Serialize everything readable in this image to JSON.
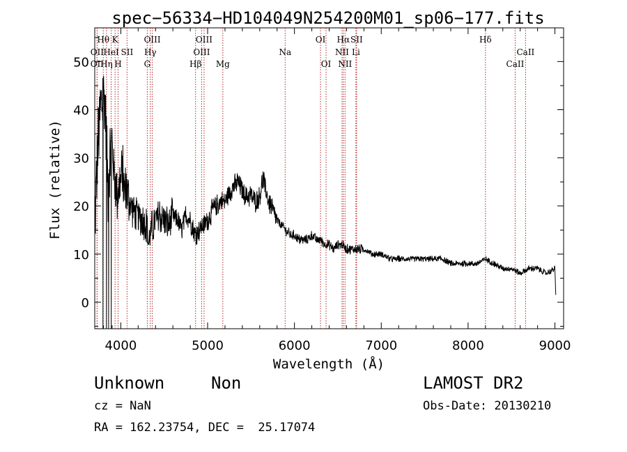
{
  "chart_data": {
    "type": "line",
    "title": "spec−56334−HD104049N254200M01_sp06−177.fits",
    "xlabel": "Wavelength (Å)",
    "ylabel": "Flux (relative)",
    "xlim": [
      3700,
      9100
    ],
    "ylim": [
      -5.5,
      57
    ],
    "x_ticks": [
      4000,
      5000,
      6000,
      7000,
      8000,
      9000
    ],
    "y_ticks": [
      0,
      10,
      20,
      30,
      40,
      50
    ],
    "grid": false,
    "series": [
      {
        "x": [
          3700,
          3720,
          3740,
          3760,
          3780,
          3800,
          3820,
          3840,
          3850,
          3860,
          3880,
          3900,
          3920,
          3940,
          3960,
          3980,
          4000,
          4020,
          4040,
          4060,
          4080,
          4100,
          4150,
          4200,
          4250,
          4300,
          4320,
          4350,
          4400,
          4450,
          4500,
          4550,
          4600,
          4650,
          4700,
          4750,
          4800,
          4850,
          4900,
          4950,
          5000,
          5050,
          5100,
          5150,
          5200,
          5250,
          5300,
          5350,
          5400,
          5450,
          5500,
          5550,
          5600,
          5640,
          5660,
          5700,
          5750,
          5800,
          5850,
          5900,
          5950,
          6000,
          6050,
          6100,
          6150,
          6200,
          6250,
          6300,
          6350,
          6400,
          6450,
          6500,
          6550,
          6600,
          6650,
          6700,
          6750,
          6800,
          6900,
          7000,
          7100,
          7200,
          7300,
          7400,
          7500,
          7600,
          7700,
          7800,
          7900,
          8000,
          8100,
          8200,
          8300,
          8400,
          8500,
          8600,
          8700,
          8800,
          8900,
          9000,
          9010
        ],
        "y": [
          17,
          25,
          33,
          39,
          41,
          44,
          40,
          32,
          24,
          28,
          30,
          33,
          27,
          25,
          22,
          24,
          25,
          27,
          23,
          24,
          22,
          21,
          19,
          18,
          17,
          16,
          12,
          15,
          17,
          18,
          17,
          16,
          18,
          17,
          15,
          18,
          17,
          14,
          15,
          16,
          17,
          19,
          20,
          21,
          21,
          23,
          24,
          25,
          23,
          22,
          22,
          21,
          22,
          26,
          24,
          21,
          19,
          17,
          16,
          15,
          14,
          14,
          13,
          13,
          13,
          14,
          13,
          13,
          12,
          12,
          11,
          12,
          12,
          11,
          11,
          11,
          11,
          11,
          10,
          10,
          9,
          9,
          9,
          9,
          9,
          9,
          9,
          8,
          8,
          8,
          8,
          9,
          8,
          7,
          7,
          6,
          7,
          7,
          6,
          7,
          1
        ]
      }
    ],
    "line_markers": [
      {
        "name": "Hθ",
        "x": 3798,
        "row": 0
      },
      {
        "name": "K",
        "x": 3934,
        "row": 0
      },
      {
        "name": "OIII",
        "x": 4363,
        "row": 0
      },
      {
        "name": "OIII",
        "x": 4959,
        "row": 0
      },
      {
        "name": "OI",
        "x": 6300,
        "row": 0
      },
      {
        "name": "Hα",
        "x": 6563,
        "row": 0
      },
      {
        "name": "SII",
        "x": 6716,
        "row": 0
      },
      {
        "name": "Hδ",
        "x": 8200,
        "row": 0
      },
      {
        "name": "OII",
        "x": 3727,
        "row": 1
      },
      {
        "name": "HeI",
        "x": 3889,
        "row": 1
      },
      {
        "name": "SII",
        "x": 4072,
        "row": 1
      },
      {
        "name": "Hγ",
        "x": 4340,
        "row": 1
      },
      {
        "name": "OIII",
        "x": 4931,
        "row": 1
      },
      {
        "name": "Na",
        "x": 5893,
        "row": 1
      },
      {
        "name": "NII",
        "x": 6548,
        "row": 1
      },
      {
        "name": "Li",
        "x": 6708,
        "row": 1
      },
      {
        "name": "CaII",
        "x": 8662,
        "row": 1
      },
      {
        "name": "OII",
        "x": 3727,
        "row": 2
      },
      {
        "name": "Hη",
        "x": 3835,
        "row": 2
      },
      {
        "name": "H",
        "x": 3969,
        "row": 2
      },
      {
        "name": "G",
        "x": 4305,
        "row": 2
      },
      {
        "name": "Hβ",
        "x": 4861,
        "row": 2
      },
      {
        "name": "Mg",
        "x": 5175,
        "row": 2
      },
      {
        "name": "OI",
        "x": 6364,
        "row": 2
      },
      {
        "name": "NII",
        "x": 6583,
        "row": 2
      },
      {
        "name": "CaII",
        "x": 8542,
        "row": 2
      }
    ]
  },
  "info": {
    "object_class": "Unknown",
    "subclass": "Non",
    "survey": "LAMOST DR2",
    "redshift": "cz = NaN",
    "obs_date": "Obs-Date: 20130210",
    "coords": "RA = 162.23754, DEC =  25.17074"
  },
  "colors": {
    "spectrum": "#000000",
    "marker_line": "#b22222",
    "background": "#ffffff"
  }
}
